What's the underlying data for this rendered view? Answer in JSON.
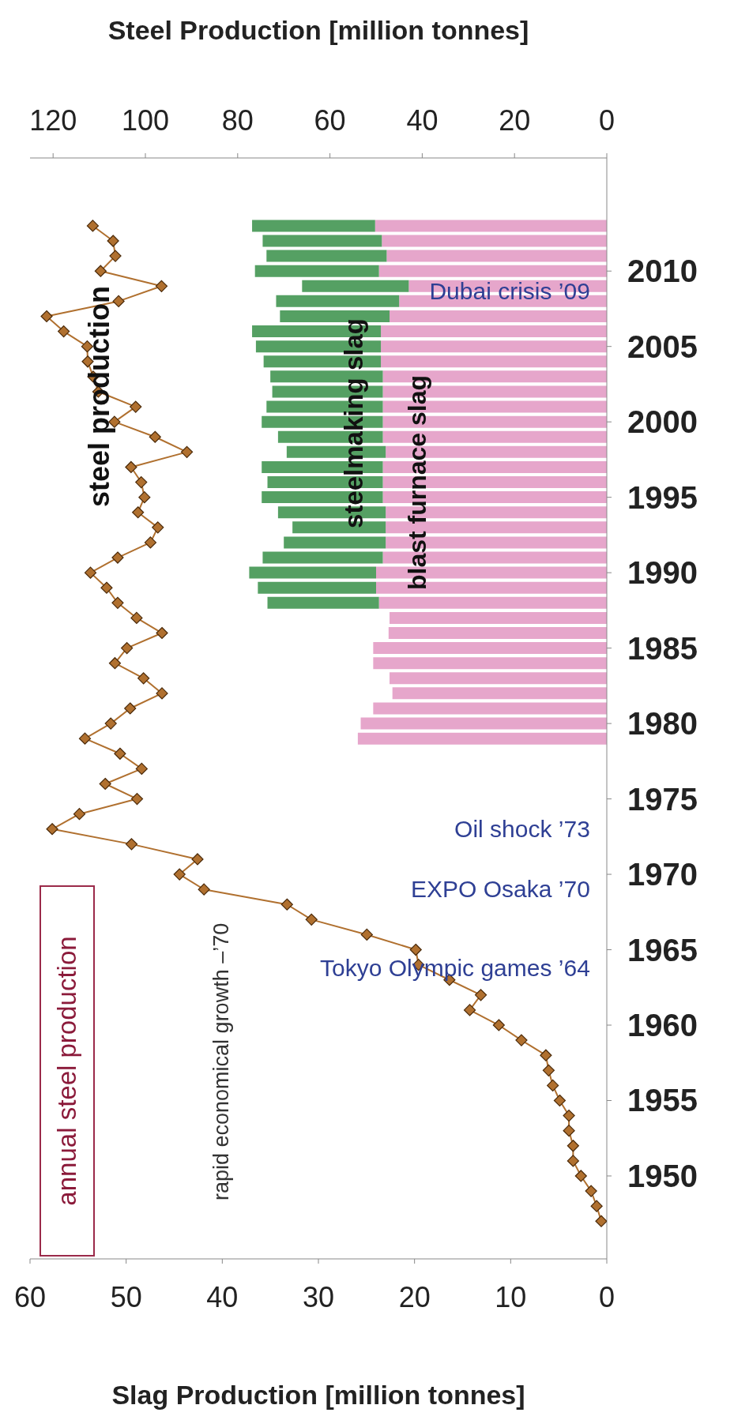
{
  "chart_data": {
    "type": "bar",
    "orientation": "horizontal",
    "title": "annual steel production",
    "xlabel": "Slag Production [million tonnes]",
    "x2label": "Steel Production [million tonnes]",
    "x": [
      1947,
      1948,
      1949,
      1950,
      1951,
      1952,
      1953,
      1954,
      1955,
      1956,
      1957,
      1958,
      1959,
      1960,
      1961,
      1962,
      1963,
      1964,
      1965,
      1966,
      1967,
      1968,
      1969,
      1970,
      1971,
      1972,
      1973,
      1974,
      1975,
      1976,
      1977,
      1978,
      1979,
      1980,
      1981,
      1982,
      1983,
      1984,
      1985,
      1986,
      1987,
      1988,
      1989,
      1990,
      1991,
      1992,
      1993,
      1994,
      1995,
      1996,
      1997,
      1998,
      1999,
      2000,
      2001,
      2002,
      2003,
      2004,
      2005,
      2006,
      2007,
      2008,
      2009,
      2010,
      2011,
      2012,
      2013
    ],
    "ylim": [
      1944.5,
      2017.5
    ],
    "yticks": [
      1950,
      1955,
      1960,
      1965,
      1970,
      1975,
      1980,
      1985,
      1990,
      1995,
      2000,
      2005,
      2010
    ],
    "xlim": [
      60,
      0
    ],
    "xticks": [
      0,
      10,
      20,
      30,
      40,
      50,
      60
    ],
    "x2lim": [
      125,
      0
    ],
    "x2ticks": [
      0,
      20,
      40,
      60,
      80,
      100,
      120
    ],
    "stacked": true,
    "legend": false,
    "grid": false,
    "marker": "diamond",
    "line_style": "solid",
    "series": [
      {
        "name": "blast furnace slag",
        "color": "#e6a6cb",
        "values": [
          null,
          null,
          null,
          null,
          null,
          null,
          null,
          null,
          null,
          null,
          null,
          null,
          null,
          null,
          null,
          null,
          null,
          null,
          null,
          null,
          null,
          null,
          null,
          null,
          null,
          null,
          null,
          null,
          null,
          null,
          null,
          null,
          25.9,
          25.6,
          24.3,
          22.3,
          22.6,
          24.3,
          24.3,
          22.7,
          22.6,
          23.7,
          24.0,
          24.0,
          23.3,
          23.0,
          23.0,
          23.0,
          23.3,
          23.3,
          23.3,
          23.0,
          23.3,
          23.3,
          23.3,
          23.3,
          23.3,
          23.5,
          23.5,
          23.5,
          22.6,
          21.6,
          20.6,
          23.7,
          22.9,
          23.4,
          24.1
        ]
      },
      {
        "name": "steelmaking slag",
        "color": "#55a063",
        "values": [
          null,
          null,
          null,
          null,
          null,
          null,
          null,
          null,
          null,
          null,
          null,
          null,
          null,
          null,
          null,
          null,
          null,
          null,
          null,
          null,
          null,
          null,
          null,
          null,
          null,
          null,
          null,
          null,
          null,
          null,
          null,
          null,
          null,
          null,
          null,
          null,
          null,
          null,
          null,
          null,
          null,
          11.6,
          12.3,
          13.2,
          12.5,
          10.6,
          9.7,
          11.2,
          12.6,
          12.0,
          12.6,
          10.3,
          10.9,
          12.6,
          12.1,
          11.5,
          11.7,
          12.2,
          13.0,
          13.4,
          11.4,
          12.8,
          11.1,
          12.9,
          12.5,
          12.4,
          12.8
        ]
      },
      {
        "name": "steel production",
        "type": "line",
        "axis": "x2",
        "color": "#b0702f",
        "values": [
          1.2,
          2.2,
          3.4,
          5.6,
          7.3,
          7.3,
          8.2,
          8.2,
          10.2,
          11.7,
          12.6,
          13.2,
          18.5,
          23.4,
          29.7,
          27.3,
          34.1,
          40.8,
          41.4,
          52.0,
          64.0,
          69.3,
          87.3,
          92.6,
          88.7,
          103.0,
          120.2,
          114.3,
          101.8,
          108.7,
          100.8,
          105.5,
          113.1,
          107.5,
          103.3,
          96.4,
          100.4,
          106.6,
          104.0,
          96.4,
          101.9,
          106.0,
          108.4,
          111.9,
          106.0,
          98.9,
          97.3,
          101.6,
          100.2,
          100.9,
          103.1,
          91.0,
          97.9,
          106.7,
          102.1,
          110.2,
          111.3,
          112.5,
          112.6,
          117.7,
          121.4,
          105.8,
          96.5,
          109.7,
          106.5,
          107.0,
          111.4
        ]
      }
    ],
    "annotations": [
      "rapid economical growth –’70",
      "Tokyo Olympic games ’64",
      "EXPO Osaka ’70",
      "Oil shock ’73",
      "Dubai crisis ’09"
    ]
  }
}
